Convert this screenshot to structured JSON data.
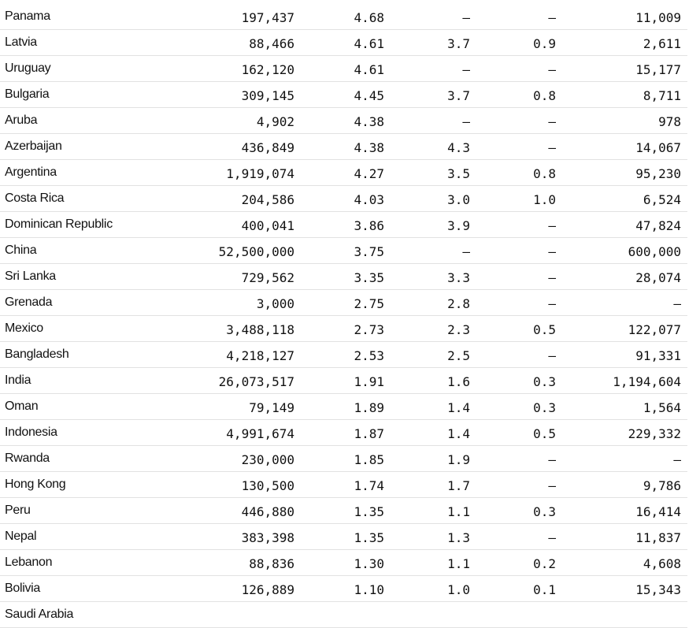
{
  "table": {
    "rows": [
      {
        "country": "Panama",
        "c1": "197,437",
        "c2": "4.68",
        "c3": "–",
        "c4": "–",
        "c5": "11,009"
      },
      {
        "country": "Latvia",
        "c1": "88,466",
        "c2": "4.61",
        "c3": "3.7",
        "c4": "0.9",
        "c5": "2,611"
      },
      {
        "country": "Uruguay",
        "c1": "162,120",
        "c2": "4.61",
        "c3": "–",
        "c4": "–",
        "c5": "15,177"
      },
      {
        "country": "Bulgaria",
        "c1": "309,145",
        "c2": "4.45",
        "c3": "3.7",
        "c4": "0.8",
        "c5": "8,711"
      },
      {
        "country": "Aruba",
        "c1": "4,902",
        "c2": "4.38",
        "c3": "–",
        "c4": "–",
        "c5": "978"
      },
      {
        "country": "Azerbaijan",
        "c1": "436,849",
        "c2": "4.38",
        "c3": "4.3",
        "c4": "–",
        "c5": "14,067"
      },
      {
        "country": "Argentina",
        "c1": "1,919,074",
        "c2": "4.27",
        "c3": "3.5",
        "c4": "0.8",
        "c5": "95,230"
      },
      {
        "country": "Costa Rica",
        "c1": "204,586",
        "c2": "4.03",
        "c3": "3.0",
        "c4": "1.0",
        "c5": "6,524"
      },
      {
        "country": "Dominican Republic",
        "c1": "400,041",
        "c2": "3.86",
        "c3": "3.9",
        "c4": "–",
        "c5": "47,824"
      },
      {
        "country": "China",
        "c1": "52,500,000",
        "c2": "3.75",
        "c3": "–",
        "c4": "–",
        "c5": "600,000"
      },
      {
        "country": "Sri Lanka",
        "c1": "729,562",
        "c2": "3.35",
        "c3": "3.3",
        "c4": "–",
        "c5": "28,074"
      },
      {
        "country": "Grenada",
        "c1": "3,000",
        "c2": "2.75",
        "c3": "2.8",
        "c4": "–",
        "c5": "–"
      },
      {
        "country": "Mexico",
        "c1": "3,488,118",
        "c2": "2.73",
        "c3": "2.3",
        "c4": "0.5",
        "c5": "122,077"
      },
      {
        "country": "Bangladesh",
        "c1": "4,218,127",
        "c2": "2.53",
        "c3": "2.5",
        "c4": "–",
        "c5": "91,331"
      },
      {
        "country": "India",
        "c1": "26,073,517",
        "c2": "1.91",
        "c3": "1.6",
        "c4": "0.3",
        "c5": "1,194,604"
      },
      {
        "country": "Oman",
        "c1": "79,149",
        "c2": "1.89",
        "c3": "1.4",
        "c4": "0.3",
        "c5": "1,564"
      },
      {
        "country": "Indonesia",
        "c1": "4,991,674",
        "c2": "1.87",
        "c3": "1.4",
        "c4": "0.5",
        "c5": "229,332"
      },
      {
        "country": "Rwanda",
        "c1": "230,000",
        "c2": "1.85",
        "c3": "1.9",
        "c4": "–",
        "c5": "–"
      },
      {
        "country": "Hong Kong",
        "c1": "130,500",
        "c2": "1.74",
        "c3": "1.7",
        "c4": "–",
        "c5": "9,786"
      },
      {
        "country": "Peru",
        "c1": "446,880",
        "c2": "1.35",
        "c3": "1.1",
        "c4": "0.3",
        "c5": "16,414"
      },
      {
        "country": "Nepal",
        "c1": "383,398",
        "c2": "1.35",
        "c3": "1.3",
        "c4": "–",
        "c5": "11,837"
      },
      {
        "country": "Lebanon",
        "c1": "88,836",
        "c2": "1.30",
        "c3": "1.1",
        "c4": "0.2",
        "c5": "4,608"
      },
      {
        "country": "Bolivia",
        "c1": "126,889",
        "c2": "1.10",
        "c3": "1.0",
        "c4": "0.1",
        "c5": "15,343"
      },
      {
        "country": "Saudi Arabia",
        "c1": "",
        "c2": "",
        "c3": "",
        "c4": "",
        "c5": ""
      }
    ]
  }
}
